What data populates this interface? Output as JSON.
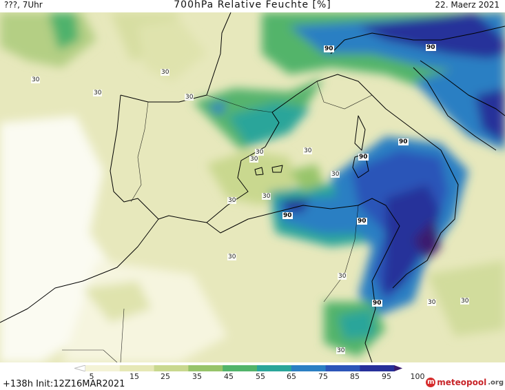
{
  "header": {
    "left": "???, 7Uhr",
    "title": "700hPa Relative Feuchte [%]",
    "date": "22. Maerz 2021"
  },
  "map": {
    "contour_labels": [
      {
        "text": "30",
        "tone": "light"
      },
      {
        "text": "30",
        "tone": "light"
      },
      {
        "text": "30",
        "tone": "light"
      },
      {
        "text": "30",
        "tone": "light"
      },
      {
        "text": "30",
        "tone": "light"
      },
      {
        "text": "30",
        "tone": "light"
      },
      {
        "text": "30",
        "tone": "light"
      },
      {
        "text": "30",
        "tone": "light"
      },
      {
        "text": "30",
        "tone": "light"
      },
      {
        "text": "30",
        "tone": "light"
      },
      {
        "text": "30",
        "tone": "light"
      },
      {
        "text": "30",
        "tone": "light"
      },
      {
        "text": "30",
        "tone": "light"
      },
      {
        "text": "30",
        "tone": "light"
      },
      {
        "text": "30",
        "tone": "light"
      },
      {
        "text": "90",
        "tone": "dark"
      },
      {
        "text": "90",
        "tone": "dark"
      },
      {
        "text": "90",
        "tone": "dark"
      },
      {
        "text": "90",
        "tone": "dark"
      },
      {
        "text": "90",
        "tone": "dark"
      },
      {
        "text": "90",
        "tone": "dark"
      },
      {
        "text": "90",
        "tone": "dark"
      }
    ]
  },
  "legend": {
    "ticks": [
      "5",
      "15",
      "25",
      "35",
      "45",
      "55",
      "65",
      "75",
      "85",
      "95",
      "100"
    ],
    "colors": [
      "#ffffff",
      "#f4f3d6",
      "#e6e8b6",
      "#c9d88f",
      "#97c46a",
      "#52b46a",
      "#2aa59a",
      "#2b7fc3",
      "#2c55b8",
      "#27309a",
      "#3a1c6e"
    ]
  },
  "footer": {
    "run_info": "+138h  Init:12Z16MAR2021",
    "logo_name": "meteopool",
    "logo_tld": ".org",
    "logo_icon": "meteopool-logo-icon"
  }
}
